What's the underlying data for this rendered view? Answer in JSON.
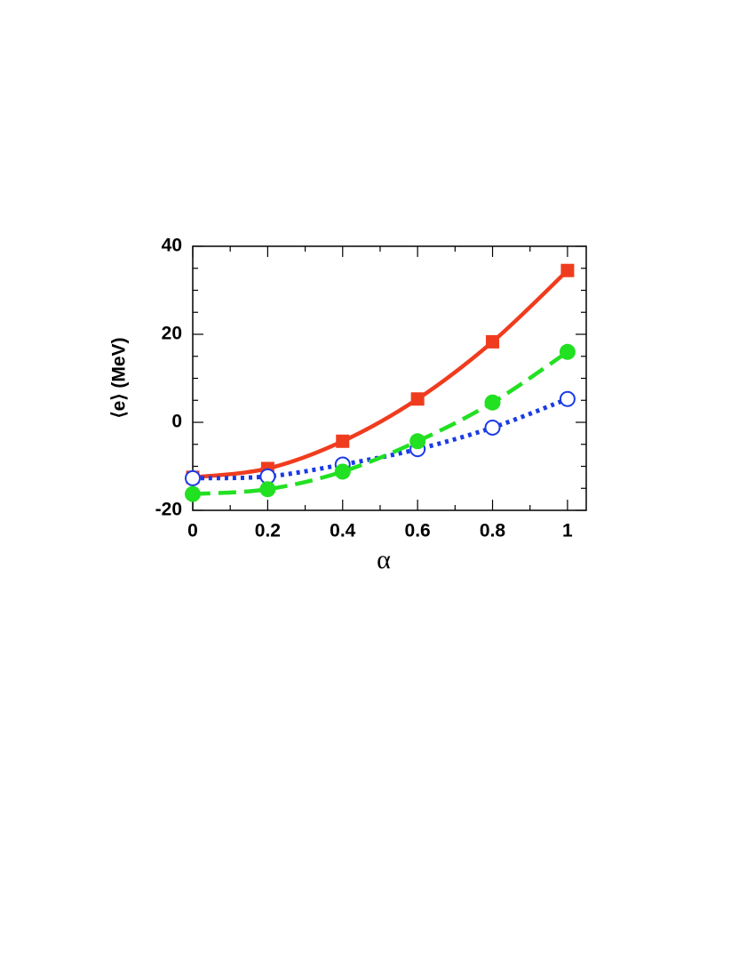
{
  "chart_data": {
    "type": "line",
    "xlabel": "α",
    "ylabel": "⟨e⟩ (MeV)",
    "x": [
      0,
      0.2,
      0.4,
      0.6,
      0.8,
      1
    ],
    "xlim": [
      0,
      1.05
    ],
    "ylim": [
      -20,
      40
    ],
    "xticks": [
      0,
      0.2,
      0.4,
      0.6,
      0.8,
      1
    ],
    "yticks": [
      -20,
      0,
      20,
      40
    ],
    "xticks_minor": [
      0.1,
      0.3,
      0.5,
      0.7,
      0.9
    ],
    "yticks_minor": [
      -15,
      -10,
      -5,
      5,
      10,
      15,
      25,
      30,
      35
    ],
    "series": [
      {
        "color": "#f03c1e",
        "marker": "square",
        "linestyle": "solid",
        "values": [
          -12.5,
          -10.5,
          -4.3,
          5.3,
          18.3,
          34.5
        ]
      },
      {
        "color": "#1a3be6",
        "marker": "open-circle",
        "linestyle": "dotted",
        "values": [
          -12.7,
          -12.3,
          -9.6,
          -6.1,
          -1.2,
          5.3
        ]
      },
      {
        "color": "#22e022",
        "marker": "circle",
        "linestyle": "dashed",
        "values": [
          -16.3,
          -15.2,
          -11.2,
          -4.3,
          4.5,
          16.0
        ]
      }
    ]
  }
}
